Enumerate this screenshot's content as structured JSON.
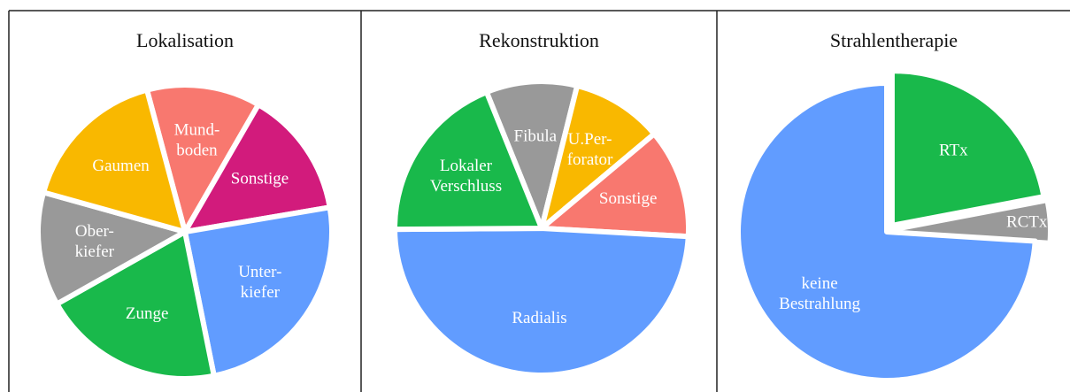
{
  "chart_data": [
    {
      "type": "pie",
      "title": "Lokalisation",
      "categories": [
        "Mund-\nboden",
        "Sonstige",
        "Unter-\nkiefer",
        "Zunge",
        "Ober-\nkiefer",
        "Gaumen"
      ],
      "values": [
        12.5,
        14,
        24.5,
        20,
        12.5,
        16.5
      ],
      "colors": [
        "#f8786f",
        "#d21b7c",
        "#619cff",
        "#19b94b",
        "#999999",
        "#f9b800"
      ]
    },
    {
      "type": "pie",
      "title": "Rekonstruktion",
      "categories": [
        "Fibula",
        "U.Per-\nforator",
        "Sonstige",
        "Radialis",
        "Lokaler\nVerschluss"
      ],
      "values": [
        10,
        10,
        12,
        49,
        19
      ],
      "colors": [
        "#999999",
        "#f9b800",
        "#f8786f",
        "#619cff",
        "#19b94b"
      ]
    },
    {
      "type": "pie",
      "title": "Strahlentherapie",
      "categories": [
        "RTx",
        "RCTx",
        "keine\nBestrahlung"
      ],
      "values": [
        22,
        4,
        74
      ],
      "colors": [
        "#19b94b",
        "#999999",
        "#619cff"
      ]
    }
  ]
}
